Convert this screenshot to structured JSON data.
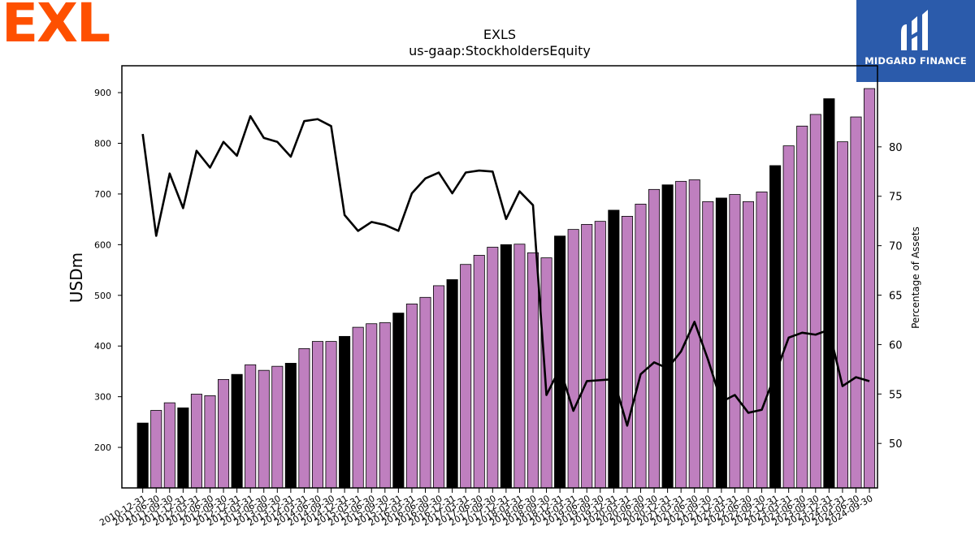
{
  "brand": {
    "left_logo_text": "EXL",
    "right_logo_text": "MIDGARD FINANCE",
    "left_logo_color": "#fe5000",
    "right_logo_bg": "#2b5bab"
  },
  "chart_data": {
    "type": "bar",
    "title": "EXLS",
    "subtitle": "us-gaap:StockholdersEquity",
    "ylabel": "USDm",
    "y2label": "Percentage of Assets",
    "ylim": [
      120,
      953
    ],
    "y2lim": [
      45.5,
      88.2
    ],
    "yticks": [
      200,
      300,
      400,
      500,
      600,
      700,
      800,
      900
    ],
    "y2ticks": [
      50,
      55,
      60,
      65,
      70,
      75,
      80
    ],
    "colors": {
      "annual_bar": "#000000",
      "quarter_bar": "#bf7fbf",
      "line": "#000000"
    },
    "categories": [
      "2010-12-31",
      "2011-06-30",
      "2011-09-30",
      "2011-12-31",
      "2012-03-31",
      "2012-06-30",
      "2012-09-30",
      "2012-12-31",
      "2013-03-31",
      "2013-06-30",
      "2013-09-30",
      "2013-12-31",
      "2014-03-31",
      "2014-06-30",
      "2014-09-30",
      "2014-12-31",
      "2015-03-31",
      "2015-06-30",
      "2015-09-30",
      "2015-12-31",
      "2016-03-31",
      "2016-06-30",
      "2016-09-30",
      "2016-12-31",
      "2017-03-31",
      "2017-06-30",
      "2017-09-30",
      "2017-12-31",
      "2018-03-31",
      "2018-06-30",
      "2018-09-30",
      "2018-12-31",
      "2019-03-31",
      "2019-06-30",
      "2019-09-30",
      "2019-12-31",
      "2020-03-31",
      "2020-06-30",
      "2020-09-30",
      "2020-12-31",
      "2021-03-31",
      "2021-06-30",
      "2021-09-30",
      "2021-12-31",
      "2022-03-31",
      "2022-06-30",
      "2022-09-30",
      "2022-12-31",
      "2023-03-31",
      "2023-06-30",
      "2023-09-30",
      "2023-12-31",
      "2024-03-31",
      "2024-06-30",
      "2024-09-30"
    ],
    "series": [
      {
        "type": "bar",
        "values": [
          248,
          273,
          288,
          278,
          305,
          302,
          334,
          344,
          363,
          352,
          360,
          366,
          395,
          409,
          409,
          419,
          437,
          444,
          446,
          465,
          483,
          496,
          519,
          531,
          561,
          579,
          595,
          600,
          601,
          584,
          574,
          617,
          630,
          640,
          646,
          668,
          656,
          680,
          709,
          718,
          725,
          728,
          685,
          692,
          699,
          685,
          704,
          756,
          795,
          834,
          857,
          888,
          803,
          852,
          908
        ],
        "annual": [
          true,
          false,
          false,
          true,
          false,
          false,
          false,
          true,
          false,
          false,
          false,
          true,
          false,
          false,
          false,
          true,
          false,
          false,
          false,
          true,
          false,
          false,
          false,
          true,
          false,
          false,
          false,
          true,
          false,
          false,
          false,
          true,
          false,
          false,
          false,
          true,
          false,
          false,
          false,
          true,
          false,
          false,
          false,
          true,
          false,
          false,
          false,
          true,
          false,
          false,
          false,
          true,
          false,
          false,
          false
        ]
      },
      {
        "type": "line",
        "axis": "right",
        "values": [
          81.3,
          71.0,
          77.3,
          73.8,
          79.6,
          77.9,
          80.5,
          79.1,
          83.1,
          80.9,
          80.5,
          79.0,
          82.6,
          82.8,
          82.1,
          73.1,
          71.5,
          72.4,
          72.1,
          71.5,
          75.3,
          76.8,
          77.4,
          75.3,
          77.4,
          77.6,
          77.5,
          72.7,
          75.5,
          74.1,
          54.9,
          57.6,
          53.3,
          56.3,
          56.4,
          56.5,
          51.8,
          57.0,
          58.2,
          57.6,
          59.3,
          62.3,
          58.5,
          54.2,
          54.9,
          53.1,
          53.4,
          57.0,
          60.7,
          61.2,
          61.0,
          61.5,
          55.8,
          56.7,
          56.3
        ]
      }
    ]
  }
}
